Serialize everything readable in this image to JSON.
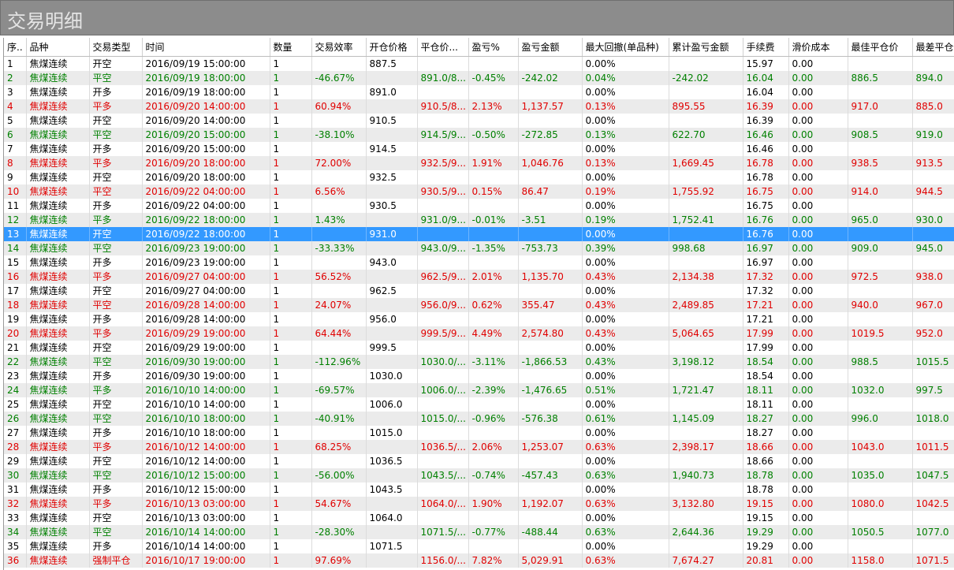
{
  "header": {
    "title": "交易明细"
  },
  "table": {
    "columns": [
      "序..",
      "品种",
      "交易类型",
      "时间",
      "数量",
      "交易效率",
      "开仓价格",
      "平仓价...",
      "盈亏%",
      "盈亏金额",
      "最大回撤(单品种)",
      "累计盈亏金额",
      "手续费",
      "滑价成本",
      "最佳平仓价",
      "最差平仓"
    ],
    "selected_row": 13,
    "rows": [
      [
        "1",
        "焦煤连续",
        "开空",
        "2016/09/19 15:00:00",
        "1",
        null,
        "887.5",
        null,
        null,
        null,
        "0.00%",
        null,
        "15.97",
        "0.00",
        null,
        null
      ],
      [
        "2",
        "焦煤连续",
        "平空",
        "2016/09/19 18:00:00",
        "1",
        "-46.67%",
        null,
        "891.0/8...",
        "-0.45%",
        "-242.02",
        "0.04%",
        "-242.02",
        "16.04",
        "0.00",
        "886.5",
        "894.0"
      ],
      [
        "3",
        "焦煤连续",
        "开多",
        "2016/09/19 18:00:00",
        "1",
        null,
        "891.0",
        null,
        null,
        null,
        "0.00%",
        null,
        "16.04",
        "0.00",
        null,
        null
      ],
      [
        "4",
        "焦煤连续",
        "平多",
        "2016/09/20 14:00:00",
        "1",
        "60.94%",
        null,
        "910.5/8...",
        "2.13%",
        "1,137.57",
        "0.13%",
        "895.55",
        "16.39",
        "0.00",
        "917.0",
        "885.0"
      ],
      [
        "5",
        "焦煤连续",
        "开空",
        "2016/09/20 14:00:00",
        "1",
        null,
        "910.5",
        null,
        null,
        null,
        "0.00%",
        null,
        "16.39",
        "0.00",
        null,
        null
      ],
      [
        "6",
        "焦煤连续",
        "平空",
        "2016/09/20 15:00:00",
        "1",
        "-38.10%",
        null,
        "914.5/9...",
        "-0.50%",
        "-272.85",
        "0.13%",
        "622.70",
        "16.46",
        "0.00",
        "908.5",
        "919.0"
      ],
      [
        "7",
        "焦煤连续",
        "开多",
        "2016/09/20 15:00:00",
        "1",
        null,
        "914.5",
        null,
        null,
        null,
        "0.00%",
        null,
        "16.46",
        "0.00",
        null,
        null
      ],
      [
        "8",
        "焦煤连续",
        "平多",
        "2016/09/20 18:00:00",
        "1",
        "72.00%",
        null,
        "932.5/9...",
        "1.91%",
        "1,046.76",
        "0.13%",
        "1,669.45",
        "16.78",
        "0.00",
        "938.5",
        "913.5"
      ],
      [
        "9",
        "焦煤连续",
        "开空",
        "2016/09/20 18:00:00",
        "1",
        null,
        "932.5",
        null,
        null,
        null,
        "0.00%",
        null,
        "16.78",
        "0.00",
        null,
        null
      ],
      [
        "10",
        "焦煤连续",
        "平空",
        "2016/09/22 04:00:00",
        "1",
        "6.56%",
        null,
        "930.5/9...",
        "0.15%",
        "86.47",
        "0.19%",
        "1,755.92",
        "16.75",
        "0.00",
        "914.0",
        "944.5"
      ],
      [
        "11",
        "焦煤连续",
        "开多",
        "2016/09/22 04:00:00",
        "1",
        null,
        "930.5",
        null,
        null,
        null,
        "0.00%",
        null,
        "16.75",
        "0.00",
        null,
        null
      ],
      [
        "12",
        "焦煤连续",
        "平多",
        "2016/09/22 18:00:00",
        "1",
        "1.43%",
        null,
        "931.0/9...",
        "-0.01%",
        "-3.51",
        "0.19%",
        "1,752.41",
        "16.76",
        "0.00",
        "965.0",
        "930.0"
      ],
      [
        "13",
        "焦煤连续",
        "开空",
        "2016/09/22 18:00:00",
        "1",
        null,
        "931.0",
        null,
        null,
        null,
        "0.00%",
        null,
        "16.76",
        "0.00",
        null,
        null
      ],
      [
        "14",
        "焦煤连续",
        "平空",
        "2016/09/23 19:00:00",
        "1",
        "-33.33%",
        null,
        "943.0/9...",
        "-1.35%",
        "-753.73",
        "0.39%",
        "998.68",
        "16.97",
        "0.00",
        "909.0",
        "945.0"
      ],
      [
        "15",
        "焦煤连续",
        "开多",
        "2016/09/23 19:00:00",
        "1",
        null,
        "943.0",
        null,
        null,
        null,
        "0.00%",
        null,
        "16.97",
        "0.00",
        null,
        null
      ],
      [
        "16",
        "焦煤连续",
        "平多",
        "2016/09/27 04:00:00",
        "1",
        "56.52%",
        null,
        "962.5/9...",
        "2.01%",
        "1,135.70",
        "0.43%",
        "2,134.38",
        "17.32",
        "0.00",
        "972.5",
        "938.0"
      ],
      [
        "17",
        "焦煤连续",
        "开空",
        "2016/09/27 04:00:00",
        "1",
        null,
        "962.5",
        null,
        null,
        null,
        "0.00%",
        null,
        "17.32",
        "0.00",
        null,
        null
      ],
      [
        "18",
        "焦煤连续",
        "平空",
        "2016/09/28 14:00:00",
        "1",
        "24.07%",
        null,
        "956.0/9...",
        "0.62%",
        "355.47",
        "0.43%",
        "2,489.85",
        "17.21",
        "0.00",
        "940.0",
        "967.0"
      ],
      [
        "19",
        "焦煤连续",
        "开多",
        "2016/09/28 14:00:00",
        "1",
        null,
        "956.0",
        null,
        null,
        null,
        "0.00%",
        null,
        "17.21",
        "0.00",
        null,
        null
      ],
      [
        "20",
        "焦煤连续",
        "平多",
        "2016/09/29 19:00:00",
        "1",
        "64.44%",
        null,
        "999.5/9...",
        "4.49%",
        "2,574.80",
        "0.43%",
        "5,064.65",
        "17.99",
        "0.00",
        "1019.5",
        "952.0"
      ],
      [
        "21",
        "焦煤连续",
        "开空",
        "2016/09/29 19:00:00",
        "1",
        null,
        "999.5",
        null,
        null,
        null,
        "0.00%",
        null,
        "17.99",
        "0.00",
        null,
        null
      ],
      [
        "22",
        "焦煤连续",
        "平空",
        "2016/09/30 19:00:00",
        "1",
        "-112.96%",
        null,
        "1030.0/...",
        "-3.11%",
        "-1,866.53",
        "0.43%",
        "3,198.12",
        "18.54",
        "0.00",
        "988.5",
        "1015.5"
      ],
      [
        "23",
        "焦煤连续",
        "开多",
        "2016/09/30 19:00:00",
        "1",
        null,
        "1030.0",
        null,
        null,
        null,
        "0.00%",
        null,
        "18.54",
        "0.00",
        null,
        null
      ],
      [
        "24",
        "焦煤连续",
        "平多",
        "2016/10/10 14:00:00",
        "1",
        "-69.57%",
        null,
        "1006.0/...",
        "-2.39%",
        "-1,476.65",
        "0.51%",
        "1,721.47",
        "18.11",
        "0.00",
        "1032.0",
        "997.5"
      ],
      [
        "25",
        "焦煤连续",
        "开空",
        "2016/10/10 14:00:00",
        "1",
        null,
        "1006.0",
        null,
        null,
        null,
        "0.00%",
        null,
        "18.11",
        "0.00",
        null,
        null
      ],
      [
        "26",
        "焦煤连续",
        "平空",
        "2016/10/10 18:00:00",
        "1",
        "-40.91%",
        null,
        "1015.0/...",
        "-0.96%",
        "-576.38",
        "0.61%",
        "1,145.09",
        "18.27",
        "0.00",
        "996.0",
        "1018.0"
      ],
      [
        "27",
        "焦煤连续",
        "开多",
        "2016/10/10 18:00:00",
        "1",
        null,
        "1015.0",
        null,
        null,
        null,
        "0.00%",
        null,
        "18.27",
        "0.00",
        null,
        null
      ],
      [
        "28",
        "焦煤连续",
        "平多",
        "2016/10/12 14:00:00",
        "1",
        "68.25%",
        null,
        "1036.5/...",
        "2.06%",
        "1,253.07",
        "0.63%",
        "2,398.17",
        "18.66",
        "0.00",
        "1043.0",
        "1011.5"
      ],
      [
        "29",
        "焦煤连续",
        "开空",
        "2016/10/12 14:00:00",
        "1",
        null,
        "1036.5",
        null,
        null,
        null,
        "0.00%",
        null,
        "18.66",
        "0.00",
        null,
        null
      ],
      [
        "30",
        "焦煤连续",
        "平空",
        "2016/10/12 15:00:00",
        "1",
        "-56.00%",
        null,
        "1043.5/...",
        "-0.74%",
        "-457.43",
        "0.63%",
        "1,940.73",
        "18.78",
        "0.00",
        "1035.0",
        "1047.5"
      ],
      [
        "31",
        "焦煤连续",
        "开多",
        "2016/10/12 15:00:00",
        "1",
        null,
        "1043.5",
        null,
        null,
        null,
        "0.00%",
        null,
        "18.78",
        "0.00",
        null,
        null
      ],
      [
        "32",
        "焦煤连续",
        "平多",
        "2016/10/13 03:00:00",
        "1",
        "54.67%",
        null,
        "1064.0/...",
        "1.90%",
        "1,192.07",
        "0.63%",
        "3,132.80",
        "19.15",
        "0.00",
        "1080.0",
        "1042.5"
      ],
      [
        "33",
        "焦煤连续",
        "开空",
        "2016/10/13 03:00:00",
        "1",
        null,
        "1064.0",
        null,
        null,
        null,
        "0.00%",
        null,
        "19.15",
        "0.00",
        null,
        null
      ],
      [
        "34",
        "焦煤连续",
        "平空",
        "2016/10/14 14:00:00",
        "1",
        "-28.30%",
        null,
        "1071.5/...",
        "-0.77%",
        "-488.44",
        "0.63%",
        "2,644.36",
        "19.29",
        "0.00",
        "1050.5",
        "1077.0"
      ],
      [
        "35",
        "焦煤连续",
        "开多",
        "2016/10/14 14:00:00",
        "1",
        null,
        "1071.5",
        null,
        null,
        null,
        "0.00%",
        null,
        "19.29",
        "0.00",
        null,
        null
      ],
      [
        "36",
        "焦煤连续",
        "强制平仓",
        "2016/10/17 19:00:00",
        "1",
        "97.69%",
        null,
        "1156.0/...",
        "7.82%",
        "5,029.91",
        "0.63%",
        "7,674.27",
        "20.81",
        "0.00",
        "1158.0",
        "1071.5"
      ]
    ]
  }
}
